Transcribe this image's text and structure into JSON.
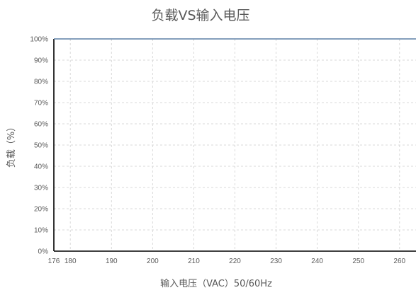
{
  "chart_data": {
    "type": "line",
    "title": "负载VS输入电压",
    "xlabel": "输入电压（VAC）50/60Hz",
    "ylabel": "负载（%）",
    "x_ticks": [
      176,
      180,
      190,
      200,
      210,
      220,
      230,
      240,
      250,
      260
    ],
    "y_tick_labels": [
      "0%",
      "10%",
      "20%",
      "30%",
      "40%",
      "50%",
      "60%",
      "70%",
      "80%",
      "90%",
      "100%"
    ],
    "xlim": [
      176,
      264
    ],
    "ylim": [
      0,
      100
    ],
    "grid": true,
    "series": [
      {
        "x": [
          176,
          264
        ],
        "values": [
          100,
          100
        ],
        "color": "#5b7fa6"
      }
    ]
  }
}
